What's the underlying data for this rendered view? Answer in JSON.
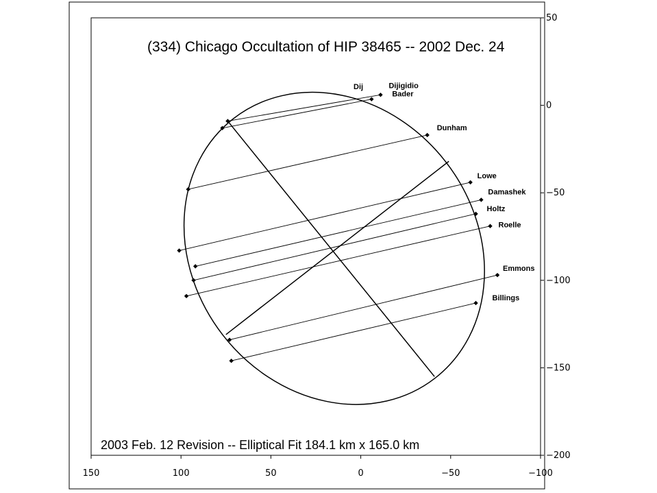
{
  "chart_data": {
    "type": "scatter",
    "title": "(334) Chicago Occultation of HIP 38465 -- 2002 Dec. 24",
    "footnote": "2003 Feb. 12 Revision -- Elliptical Fit  184.1 km x 165.0 km",
    "xlim": [
      150,
      -100
    ],
    "ylim": [
      -200,
      50
    ],
    "x_ticks": [
      150,
      100,
      50,
      0,
      -50,
      -100
    ],
    "y_ticks": [
      50,
      0,
      -50,
      -100,
      -150,
      -200
    ],
    "x_tick_labels": [
      "150",
      "100",
      "50",
      "0",
      "−50",
      "−100"
    ],
    "y_tick_labels": [
      "50",
      "0",
      "−50",
      "−100",
      "−150",
      "−200"
    ],
    "grid": false,
    "ellipse": {
      "center": [
        13,
        -81
      ],
      "semi_major_axis": 92.05,
      "semi_minor_axis": 82.5,
      "major_axis_ends": [
        [
          -49,
          -32
        ],
        [
          75,
          -131
        ]
      ],
      "minor_axis_ends": [
        [
          74,
          -9
        ],
        [
          -41,
          -155
        ]
      ]
    },
    "chords": [
      {
        "name": "Dijigidio",
        "start": [
          74,
          -9
        ],
        "end": [
          -11,
          6
        ]
      },
      {
        "name": "Bader",
        "start": [
          77,
          -13
        ],
        "end": [
          -6,
          3.5
        ]
      },
      {
        "name": "Dunham",
        "start": [
          96,
          -48
        ],
        "end": [
          -37,
          -17
        ]
      },
      {
        "name": "Lowe",
        "start": [
          101,
          -83
        ],
        "end": [
          -61,
          -44
        ]
      },
      {
        "name": "Damashek",
        "start": [
          92,
          -92
        ],
        "end": [
          -67,
          -54
        ]
      },
      {
        "name": "Holtz",
        "start": [
          93,
          -100
        ],
        "end": [
          -64,
          -62
        ]
      },
      {
        "name": "Roelle",
        "start": [
          97,
          -109
        ],
        "end": [
          -72,
          -69
        ]
      },
      {
        "name": "Emmons",
        "start": [
          73,
          -134
        ],
        "end": [
          -76,
          -97
        ]
      },
      {
        "name": "Billings",
        "start": [
          72,
          -146
        ],
        "end": [
          -64,
          -113
        ]
      }
    ],
    "extra_label": "Dĳ"
  }
}
